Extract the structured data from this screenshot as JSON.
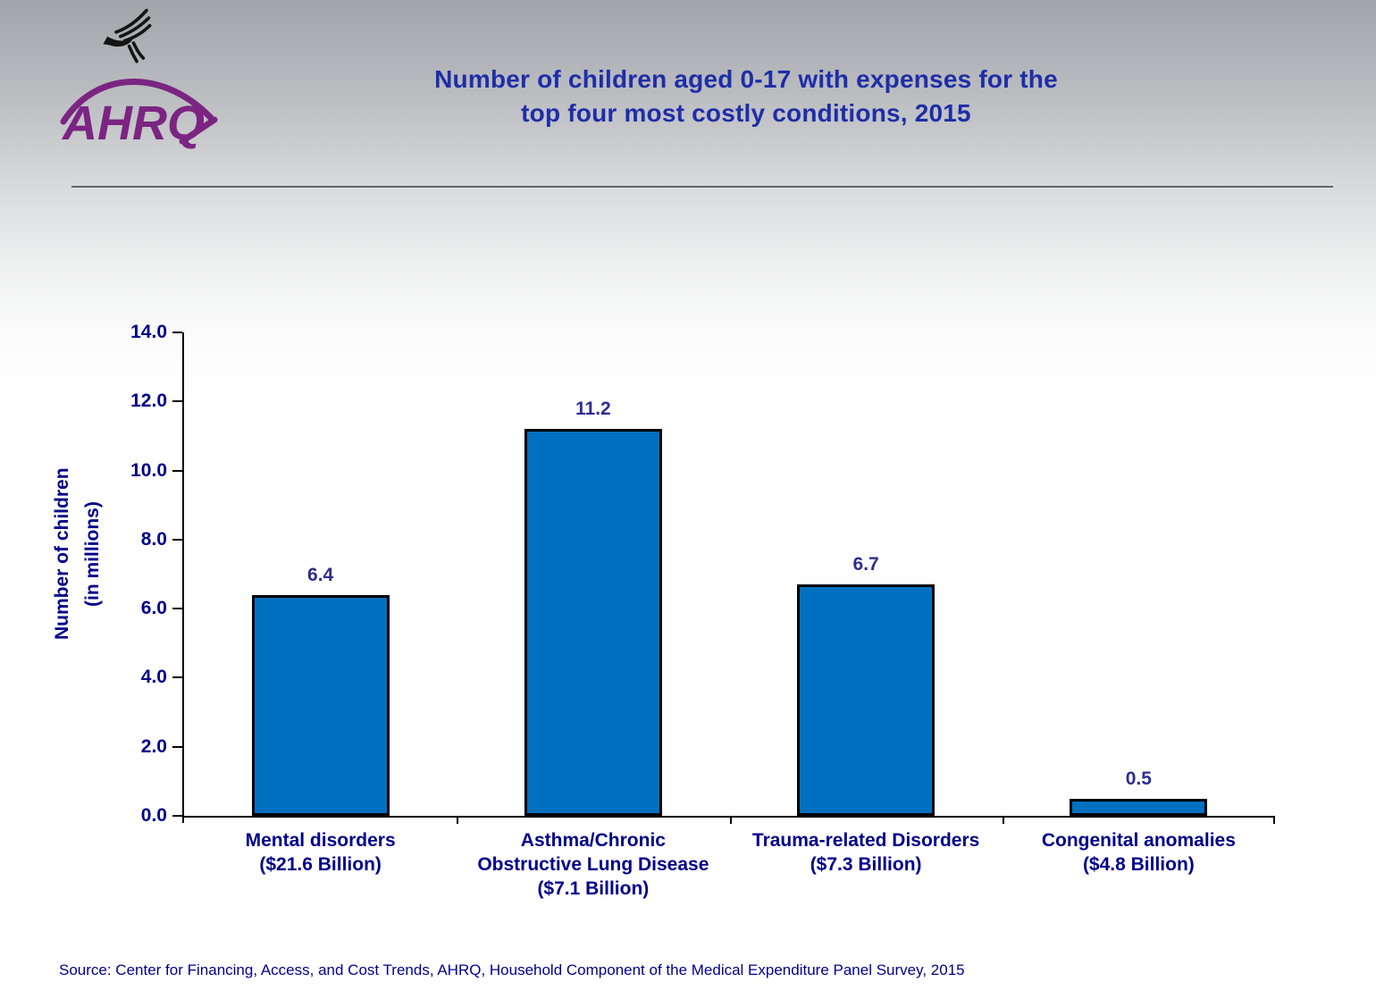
{
  "header": {
    "title_line1": "Number of children aged 0-17 with expenses for the",
    "title_line2": "top four most costly conditions, 2015",
    "logo_text": "AHRQ"
  },
  "chart_data": {
    "type": "bar",
    "title": "Number of children aged 0-17 with expenses for the top four most costly conditions, 2015",
    "categories": [
      [
        "Mental disorders",
        "($21.6 Billion)"
      ],
      [
        "Asthma/Chronic",
        "Obstructive Lung Disease",
        "($7.1 Billion)"
      ],
      [
        "Trauma-related Disorders",
        "($7.3 Billion)"
      ],
      [
        "Congenital anomalies",
        "($4.8 Billion)"
      ]
    ],
    "values": [
      6.4,
      11.2,
      6.7,
      0.5
    ],
    "value_labels": [
      "6.4",
      "11.2",
      "6.7",
      "0.5"
    ],
    "xlabel": "",
    "ylabel_line1": "Number of children",
    "ylabel_line2": "(in millions)",
    "ylim": [
      0,
      14
    ],
    "ytick_step": 2,
    "ytick_labels": [
      "0.0",
      "2.0",
      "4.0",
      "6.0",
      "8.0",
      "10.0",
      "12.0",
      "14.0"
    ],
    "grid": false,
    "legend": false,
    "bar_color": "#0070C0",
    "bar_border_color": "#000000"
  },
  "footer": {
    "source": "Source: Center for Financing, Access, and Cost Trends, AHRQ, Household Component of the Medical Expenditure Panel Survey, 2015"
  },
  "colors": {
    "title_text": "#1F2DA8",
    "axis_text": "#00008B",
    "value_label_text": "#2E2E8F",
    "source_text": "#00008B",
    "logo_purple": "#7B2482",
    "eagle_black": "#141414",
    "background_top": "#A1A5A9"
  }
}
